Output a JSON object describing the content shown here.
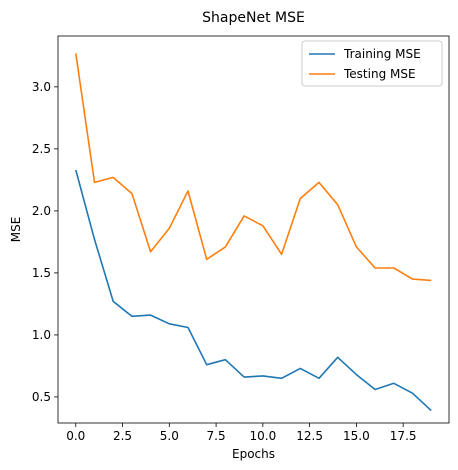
{
  "chart_data": {
    "type": "line",
    "title": "ShapeNet MSE",
    "xlabel": "Epochs",
    "ylabel": "MSE",
    "xlim": [
      -0.95,
      19.95
    ],
    "ylim": [
      0.29,
      3.41
    ],
    "xticks": [
      0.0,
      2.5,
      5.0,
      7.5,
      10.0,
      12.5,
      15.0,
      17.5
    ],
    "xtick_labels": [
      "0.0",
      "2.5",
      "5.0",
      "7.5",
      "10.0",
      "12.5",
      "15.0",
      "17.5"
    ],
    "yticks": [
      0.5,
      1.0,
      1.5,
      2.0,
      2.5,
      3.0
    ],
    "ytick_labels": [
      "0.5",
      "1.0",
      "1.5",
      "2.0",
      "2.5",
      "3.0"
    ],
    "grid": false,
    "legend_position": "top-right",
    "x": [
      0,
      1,
      2,
      3,
      4,
      5,
      6,
      7,
      8,
      9,
      10,
      11,
      12,
      13,
      14,
      15,
      16,
      17,
      18,
      19
    ],
    "series": [
      {
        "name": "Training MSE",
        "color": "#1f77b4",
        "values": [
          2.33,
          1.77,
          1.27,
          1.15,
          1.16,
          1.09,
          1.06,
          0.76,
          0.8,
          0.66,
          0.67,
          0.65,
          0.73,
          0.65,
          0.82,
          0.68,
          0.56,
          0.61,
          0.53,
          0.39
        ]
      },
      {
        "name": "Testing MSE",
        "color": "#ff7f0e",
        "values": [
          3.27,
          2.23,
          2.27,
          2.14,
          1.67,
          1.86,
          2.16,
          1.61,
          1.71,
          1.96,
          1.88,
          1.65,
          2.1,
          2.23,
          2.05,
          1.71,
          1.54,
          1.54,
          1.45,
          1.44
        ]
      }
    ]
  }
}
